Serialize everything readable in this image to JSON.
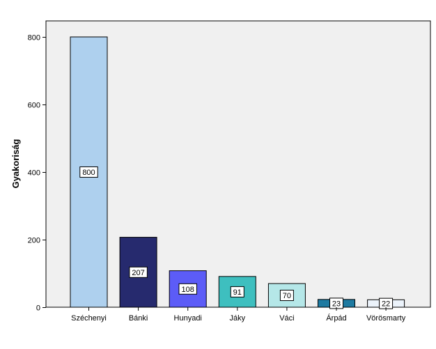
{
  "chart_data": {
    "type": "bar",
    "categories": [
      "Széchenyi",
      "Bánki",
      "Hunyadi",
      "Jáky",
      "Váci",
      "Árpád",
      "Vörösmarty"
    ],
    "values": [
      800,
      207,
      108,
      91,
      70,
      23,
      22
    ],
    "data_labels": [
      "800",
      "207",
      "108",
      "91",
      "70",
      "23",
      "22"
    ],
    "colors": [
      "#aed0ee",
      "#262a6e",
      "#5c5cf7",
      "#3ebfbf",
      "#b5e7e8",
      "#1e7aa1",
      "#ecf3fb"
    ],
    "ylabel": "Gyakoriság",
    "xlabel": "",
    "ylim": [
      0,
      800
    ],
    "yticks": [
      0,
      200,
      400,
      600,
      800
    ],
    "grid": false,
    "plot_background": "#f0f0f0"
  }
}
